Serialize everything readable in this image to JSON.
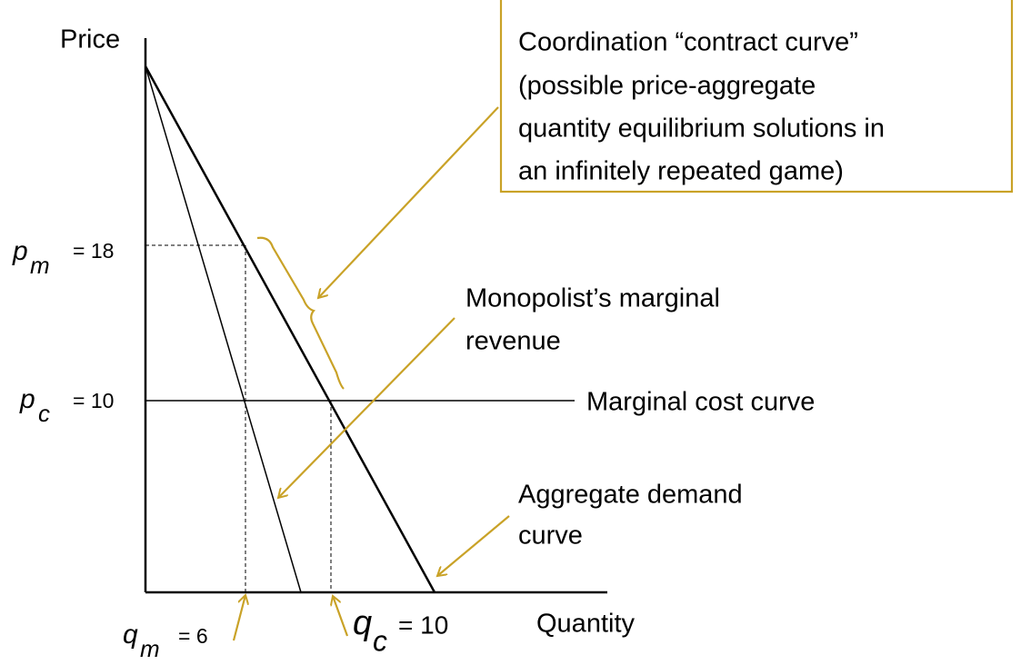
{
  "axes": {
    "y_label": "Price",
    "x_label": "Quantity"
  },
  "price_labels": [
    {
      "symbol": "p",
      "subscript": "m",
      "equals": "= 18"
    },
    {
      "symbol": "p",
      "subscript": "c",
      "equals": "= 10"
    }
  ],
  "quantity_labels": [
    {
      "symbol": "q",
      "subscript": "m",
      "equals": "= 6"
    },
    {
      "symbol": "q",
      "subscript": "c",
      "equals": "= 10"
    }
  ],
  "callouts": {
    "contract_curve": [
      "Coordination “contract curve”",
      "(possible price-aggregate",
      "quantity equilibrium solutions in",
      "an infinitely repeated game)"
    ],
    "marginal_revenue": [
      "Monopolist’s marginal",
      "revenue"
    ],
    "marginal_cost": "Marginal cost curve",
    "aggregate_demand": [
      "Aggregate demand",
      "curve"
    ]
  }
}
